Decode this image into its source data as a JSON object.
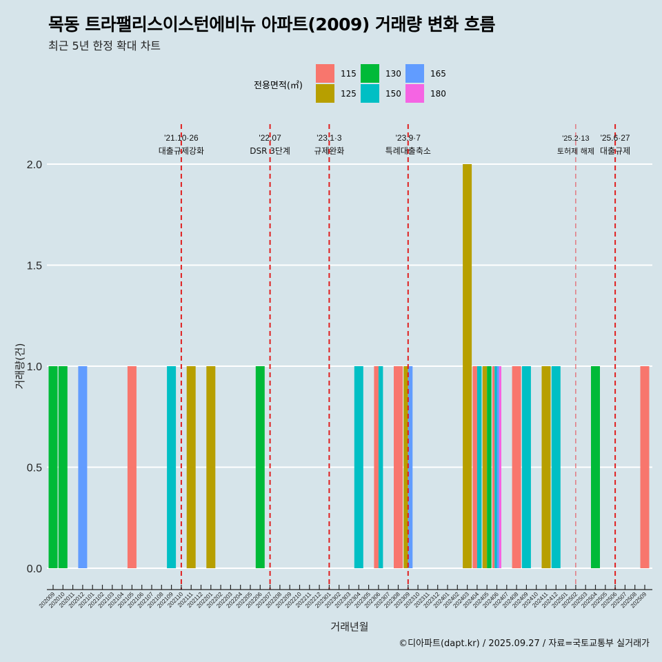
{
  "header": {
    "title": "목동 트라팰리스이스턴에비뉴 아파트(2009) 거래량 변화 흐름",
    "subtitle": "최근 5년 한정 확대 차트"
  },
  "legend": {
    "title": "전용면적(㎡)",
    "items": [
      {
        "label": "115",
        "color": "#F8766D"
      },
      {
        "label": "125",
        "color": "#B79F00"
      },
      {
        "label": "130",
        "color": "#00BA38"
      },
      {
        "label": "150",
        "color": "#00BFC4"
      },
      {
        "label": "165",
        "color": "#619CFF"
      },
      {
        "label": "180",
        "color": "#F564E3"
      }
    ]
  },
  "credit": "©디아파트(dapt.kr) / 2025.09.27 / 자료=국토교통부 실거래가",
  "chart_data": {
    "type": "bar",
    "stacking": "dodge",
    "xlabel": "거래년월",
    "ylabel": "거래량(건)",
    "ylim": [
      0,
      2
    ],
    "yticks": [
      "0.0",
      "0.5",
      "1.0",
      "1.5",
      "2.0"
    ],
    "ytick_values": [
      0,
      0.5,
      1.0,
      1.5,
      2.0
    ],
    "grid": true,
    "legend_position": "top",
    "categories": [
      "202009",
      "202010",
      "202011",
      "202012",
      "202101",
      "202102",
      "202103",
      "202104",
      "202105",
      "202106",
      "202107",
      "202108",
      "202109",
      "202110",
      "202111",
      "202112",
      "202201",
      "202202",
      "202203",
      "202204",
      "202205",
      "202206",
      "202207",
      "202208",
      "202209",
      "202210",
      "202211",
      "202212",
      "202301",
      "202302",
      "202303",
      "202304",
      "202305",
      "202306",
      "202307",
      "202308",
      "202309",
      "202310",
      "202311",
      "202312",
      "202401",
      "202402",
      "202403",
      "202404",
      "202405",
      "202406",
      "202407",
      "202408",
      "202409",
      "202410",
      "202411",
      "202412",
      "202501",
      "202502",
      "202503",
      "202504",
      "202505",
      "202506",
      "202507",
      "202508",
      "202509"
    ],
    "bars": [
      {
        "month": "202009",
        "series": [
          {
            "area": "130",
            "value": 1
          }
        ]
      },
      {
        "month": "202010",
        "series": [
          {
            "area": "130",
            "value": 1
          }
        ]
      },
      {
        "month": "202012",
        "series": [
          {
            "area": "165",
            "value": 1
          }
        ]
      },
      {
        "month": "202105",
        "series": [
          {
            "area": "115",
            "value": 1
          }
        ]
      },
      {
        "month": "202109",
        "series": [
          {
            "area": "150",
            "value": 1
          }
        ]
      },
      {
        "month": "202111",
        "series": [
          {
            "area": "125",
            "value": 1
          }
        ]
      },
      {
        "month": "202201",
        "series": [
          {
            "area": "125",
            "value": 1
          }
        ]
      },
      {
        "month": "202206",
        "series": [
          {
            "area": "130",
            "value": 1
          }
        ]
      },
      {
        "month": "202304",
        "series": [
          {
            "area": "150",
            "value": 1
          }
        ]
      },
      {
        "month": "202306",
        "series": [
          {
            "area": "115",
            "value": 1
          },
          {
            "area": "150",
            "value": 1
          }
        ]
      },
      {
        "month": "202308",
        "series": [
          {
            "area": "115",
            "value": 1
          }
        ]
      },
      {
        "month": "202309",
        "series": [
          {
            "area": "125",
            "value": 1
          },
          {
            "area": "165",
            "value": 1
          }
        ]
      },
      {
        "month": "202403",
        "series": [
          {
            "area": "125",
            "value": 2
          }
        ]
      },
      {
        "month": "202404",
        "series": [
          {
            "area": "115",
            "value": 1
          },
          {
            "area": "150",
            "value": 1
          }
        ]
      },
      {
        "month": "202405",
        "series": [
          {
            "area": "125",
            "value": 1
          },
          {
            "area": "130",
            "value": 1
          }
        ]
      },
      {
        "month": "202406",
        "series": [
          {
            "area": "115",
            "value": 1
          },
          {
            "area": "150",
            "value": 1
          },
          {
            "area": "165",
            "value": 1
          },
          {
            "area": "180",
            "value": 1
          }
        ]
      },
      {
        "month": "202408",
        "series": [
          {
            "area": "115",
            "value": 1
          }
        ]
      },
      {
        "month": "202409",
        "series": [
          {
            "area": "150",
            "value": 1
          }
        ]
      },
      {
        "month": "202411",
        "series": [
          {
            "area": "125",
            "value": 1
          }
        ]
      },
      {
        "month": "202412",
        "series": [
          {
            "area": "150",
            "value": 1
          }
        ]
      },
      {
        "month": "202504",
        "series": [
          {
            "area": "130",
            "value": 1
          }
        ]
      },
      {
        "month": "202509",
        "series": [
          {
            "area": "115",
            "value": 1
          }
        ]
      }
    ],
    "annotations": [
      {
        "month": "202110",
        "date": "'21.10·26",
        "label": "대출규제강화",
        "style": "bold"
      },
      {
        "month": "202207",
        "date": "'22.07",
        "label": "DSR 3단계",
        "style": "bold"
      },
      {
        "month": "202301",
        "date": "'23.1·3",
        "label": "규제완화",
        "style": "bold"
      },
      {
        "month": "202309",
        "date": "'23.9·7",
        "label": "특례대출축소",
        "style": "bold"
      },
      {
        "month": "202502",
        "date": "'25.2·13",
        "label": "토허제 해제",
        "style": "thin"
      },
      {
        "month": "202506",
        "date": "'25.6·27",
        "label": "대출규제",
        "style": "bold"
      }
    ]
  }
}
